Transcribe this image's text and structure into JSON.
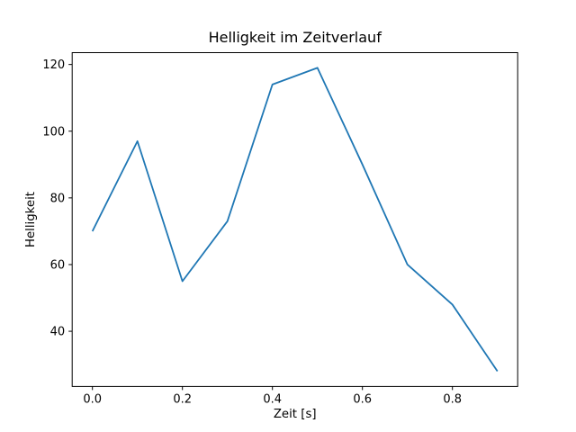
{
  "figure": {
    "title": "Helligkeit im Zeitverlauf",
    "xlabel": "Zeit [s]",
    "ylabel": "Helligkeit"
  },
  "chart_data": {
    "type": "line",
    "title": "Helligkeit im Zeitverlauf",
    "xlabel": "Zeit [s]",
    "ylabel": "Helligkeit",
    "x": [
      0.0,
      0.1,
      0.2,
      0.3,
      0.4,
      0.5,
      0.6,
      0.7,
      0.8,
      0.9
    ],
    "y": [
      70,
      97,
      55,
      73,
      114,
      119,
      90,
      60,
      48,
      28
    ],
    "series_name": "Helligkeit",
    "xlim": [
      -0.045,
      0.945
    ],
    "ylim": [
      23.45,
      123.55
    ],
    "xticks": [
      0.0,
      0.2,
      0.4,
      0.6,
      0.8
    ],
    "xtick_labels": [
      "0.0",
      "0.2",
      "0.4",
      "0.6",
      "0.8"
    ],
    "yticks": [
      40,
      60,
      80,
      100,
      120
    ],
    "ytick_labels": [
      "40",
      "60",
      "80",
      "100",
      "120"
    ],
    "line_color": "#1f77b4",
    "axis_color": "#000000",
    "background_color": "#ffffff",
    "grid": false,
    "legend_position": "none"
  }
}
